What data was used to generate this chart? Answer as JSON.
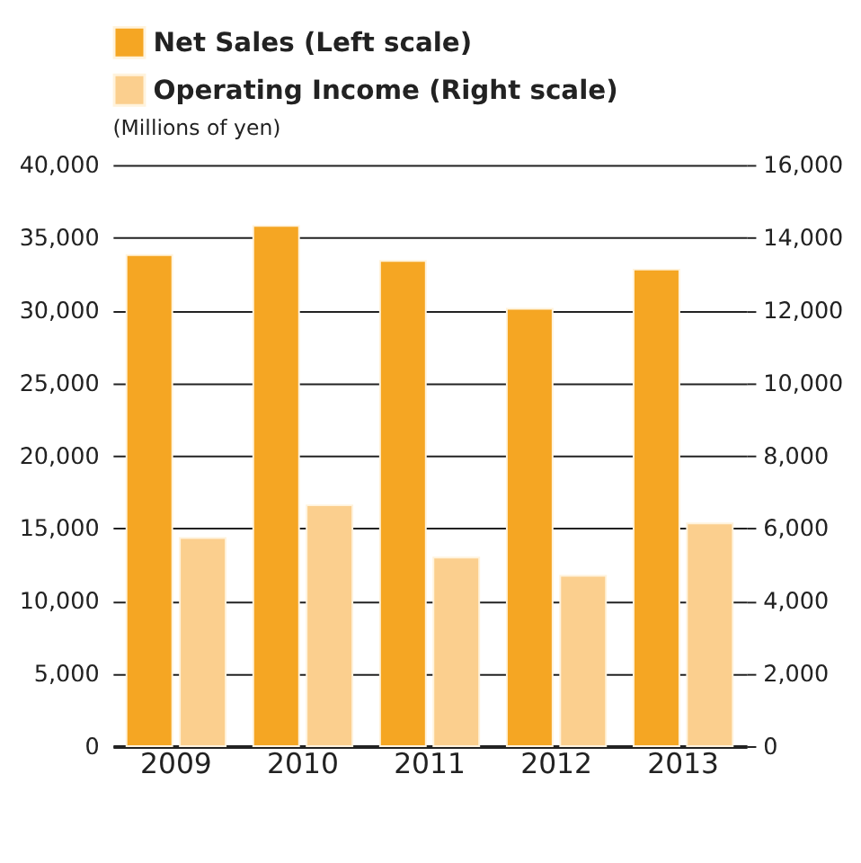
{
  "chart_data": {
    "type": "bar",
    "categories": [
      "2009",
      "2010",
      "2011",
      "2012",
      "2013"
    ],
    "series": [
      {
        "name": "Net Sales (Left scale)",
        "color": "#f5a623",
        "values": [
          33800,
          35800,
          33400,
          30100,
          32800
        ]
      },
      {
        "name": "Operating Income (Right scale)",
        "color": "#fbcf8e",
        "axis": "y2",
        "values": [
          5730,
          6630,
          5190,
          4690,
          6130
        ]
      }
    ],
    "ylim": [
      0,
      40000
    ],
    "yticks": [
      0,
      {
        "value": 5000,
        "label": "5,000"
      },
      {
        "value": 10000,
        "label": "10,000"
      },
      {
        "value": 15000,
        "label": "15,000"
      },
      {
        "value": 20000,
        "label": "20,000"
      },
      {
        "value": 25000,
        "label": "25,000"
      },
      {
        "value": 30000,
        "label": "30,000"
      },
      {
        "value": 35000,
        "label": "35,000"
      },
      {
        "value": 40000,
        "label": "40,000"
      }
    ],
    "y2lim": [
      0,
      16000
    ],
    "y2ticks": [
      0,
      {
        "value": 2000,
        "label": "2,000"
      },
      {
        "value": 4000,
        "label": "4,000"
      },
      {
        "value": 6000,
        "label": "6,000"
      },
      {
        "value": 8000,
        "label": "8,000"
      },
      {
        "value": 10000,
        "label": "10,000"
      },
      {
        "value": 12000,
        "label": "12,000"
      },
      {
        "value": 14000,
        "label": "14,000"
      },
      {
        "value": 16000,
        "label": "16,000"
      }
    ],
    "annotations": [
      "(Millions of yen)"
    ],
    "grid": "y",
    "legend": "top"
  }
}
